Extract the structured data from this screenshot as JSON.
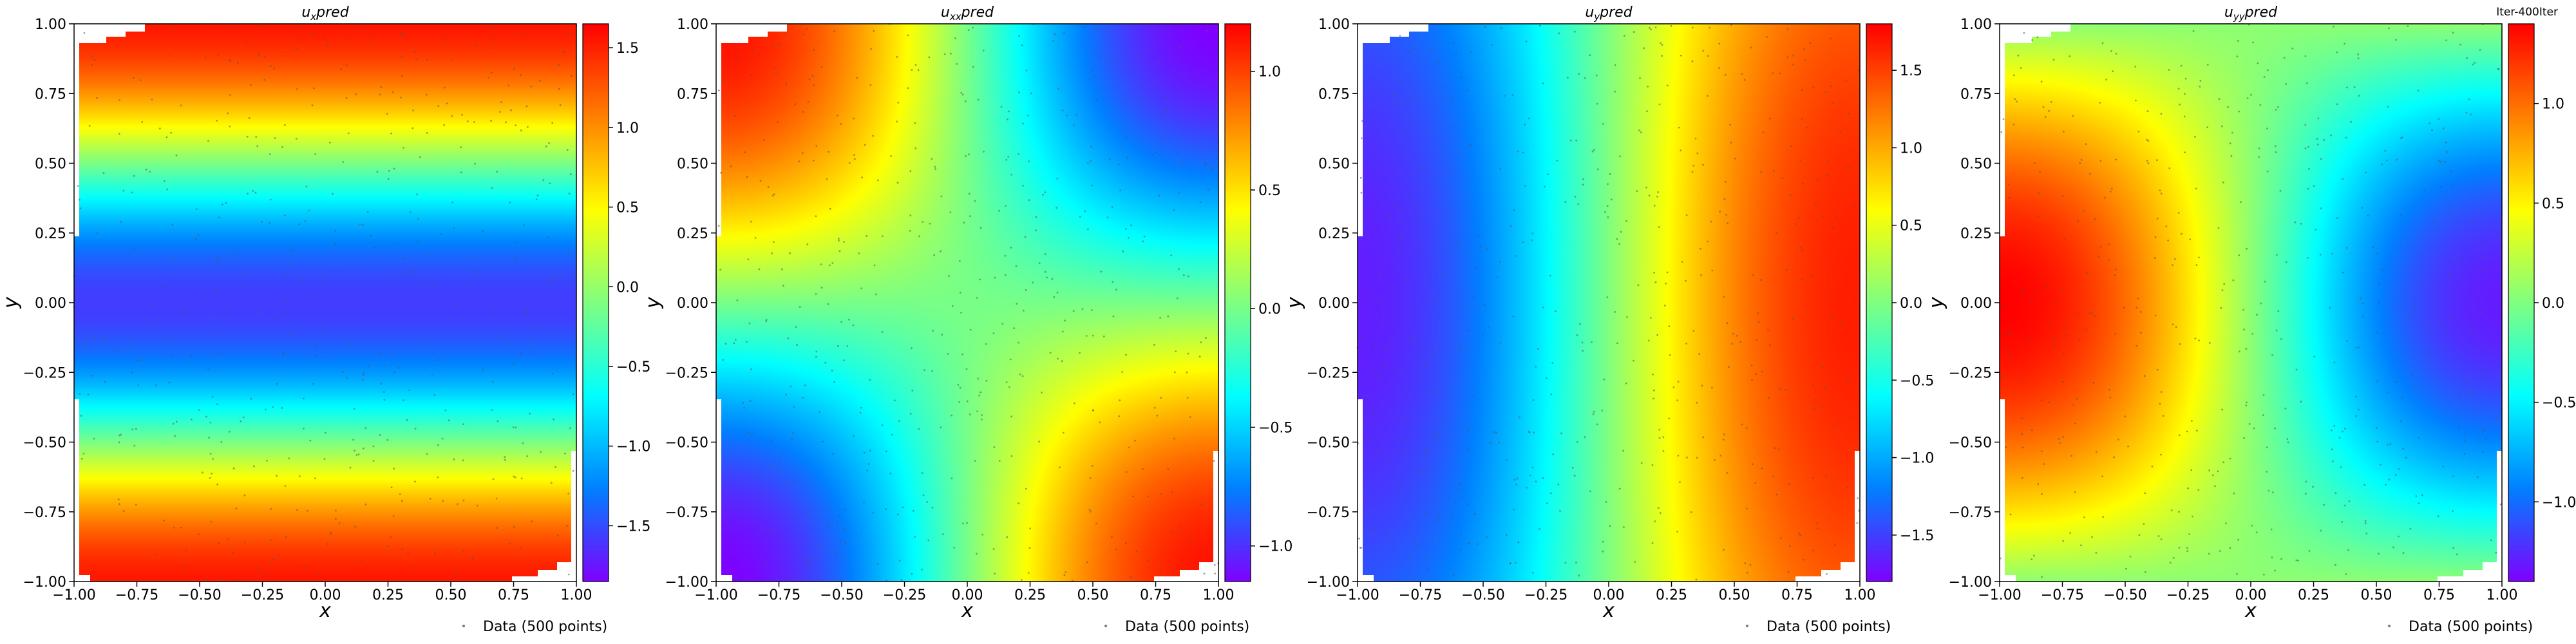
{
  "corner_label": "Iter-400Iter",
  "legend_label": "Data (500 points)",
  "colorscale": [
    "#8000ff",
    "#0080ff",
    "#00ffff",
    "#80ff80",
    "#ffff00",
    "#ff8000",
    "#ff0000"
  ],
  "chart_data": [
    {
      "type": "heatmap",
      "title": "u_x pred",
      "title_base": "u",
      "title_sub": "x",
      "title_rest": "pred",
      "xlabel": "x",
      "ylabel": "y",
      "xlim": [
        -1.0,
        1.0
      ],
      "ylim": [
        -1.0,
        1.0
      ],
      "x_ticks": [
        "−1.00",
        "−0.75",
        "−0.50",
        "−0.25",
        "0.00",
        "0.25",
        "0.50",
        "0.75",
        "1.00"
      ],
      "y_ticks": [
        "1.00",
        "0.75",
        "0.50",
        "0.25",
        "0.00",
        "−0.25",
        "−0.50",
        "−0.75",
        "−1.00"
      ],
      "colorbar": {
        "range": [
          -1.85,
          1.65
        ],
        "ticks": [
          1.5,
          1.0,
          0.5,
          0.0,
          -0.5,
          -1.0,
          -1.5
        ],
        "tick_labels": [
          "1.5",
          "1.0",
          "0.5",
          "0.0",
          "−0.5",
          "−1.0",
          "−1.5"
        ]
      },
      "field": "u_x"
    },
    {
      "type": "heatmap",
      "title": "u_xx pred",
      "title_base": "u",
      "title_sub": "xx",
      "title_rest": "pred",
      "xlabel": "x",
      "ylabel": "y",
      "xlim": [
        -1.0,
        1.0
      ],
      "ylim": [
        -1.0,
        1.0
      ],
      "x_ticks": [
        "−1.00",
        "−0.75",
        "−0.50",
        "−0.25",
        "0.00",
        "0.25",
        "0.50",
        "0.75",
        "1.00"
      ],
      "y_ticks": [
        "1.00",
        "0.75",
        "0.50",
        "0.25",
        "0.00",
        "−0.25",
        "−0.50",
        "−0.75",
        "−1.00"
      ],
      "colorbar": {
        "range": [
          -1.15,
          1.2
        ],
        "ticks": [
          1.0,
          0.5,
          0.0,
          -0.5,
          -1.0
        ],
        "tick_labels": [
          "1.0",
          "0.5",
          "0.0",
          "−0.5",
          "−1.0"
        ]
      },
      "field": "u_xx"
    },
    {
      "type": "heatmap",
      "title": "u_y pred",
      "title_base": "u",
      "title_sub": "y",
      "title_rest": "pred",
      "xlabel": "x",
      "ylabel": "y",
      "xlim": [
        -1.0,
        1.0
      ],
      "ylim": [
        -1.0,
        1.0
      ],
      "x_ticks": [
        "−1.00",
        "−0.75",
        "−0.50",
        "−0.25",
        "0.00",
        "0.25",
        "0.50",
        "0.75",
        "1.00"
      ],
      "y_ticks": [
        "1.00",
        "0.75",
        "0.50",
        "0.25",
        "0.00",
        "−0.25",
        "−0.50",
        "−0.75",
        "−1.00"
      ],
      "colorbar": {
        "range": [
          -1.8,
          1.8
        ],
        "ticks": [
          1.5,
          1.0,
          0.5,
          0.0,
          -0.5,
          -1.0,
          -1.5
        ],
        "tick_labels": [
          "1.5",
          "1.0",
          "0.5",
          "0.0",
          "−0.5",
          "−1.0",
          "−1.5"
        ]
      },
      "field": "u_y"
    },
    {
      "type": "heatmap",
      "title": "u_yy pred",
      "title_base": "u",
      "title_sub": "yy",
      "title_rest": "pred",
      "xlabel": "x",
      "ylabel": "y",
      "xlim": [
        -1.0,
        1.0
      ],
      "ylim": [
        -1.0,
        1.0
      ],
      "x_ticks": [
        "−1.00",
        "−0.75",
        "−0.50",
        "−0.25",
        "0.00",
        "0.25",
        "0.50",
        "0.75",
        "1.00"
      ],
      "y_ticks": [
        "1.00",
        "0.75",
        "0.50",
        "0.25",
        "0.00",
        "−0.25",
        "−0.50",
        "−0.75",
        "−1.00"
      ],
      "colorbar": {
        "range": [
          -1.4,
          1.4
        ],
        "ticks": [
          1.0,
          0.5,
          0.0,
          -0.5,
          -1.0
        ],
        "tick_labels": [
          "1.0",
          "0.5",
          "0.0",
          "−0.5",
          "−1.0"
        ]
      },
      "field": "u_yy"
    }
  ]
}
